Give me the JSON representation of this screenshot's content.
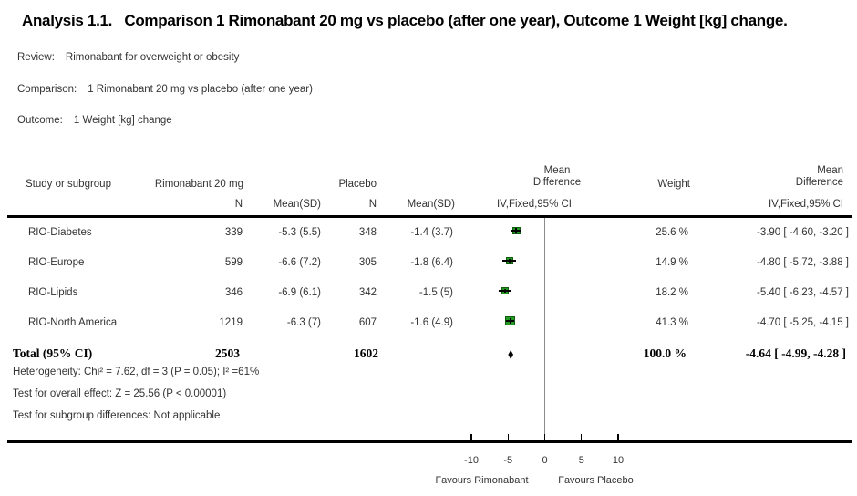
{
  "title": "Analysis 1.1.   Comparison 1 Rimonabant 20 mg vs placebo (after one year), Outcome 1 Weight [kg] change.",
  "meta": {
    "review_label": "Review:",
    "review": "Rimonabant for overweight or obesity",
    "comparison_label": "Comparison:",
    "comparison": "1 Rimonabant 20 mg vs placebo (after one year)",
    "outcome_label": "Outcome:",
    "outcome": "1 Weight [kg] change"
  },
  "table": {
    "headers": {
      "study": "Study or subgroup",
      "group1": "Rimonabant 20 mg",
      "group2": "Placebo",
      "n": "N",
      "mean_sd": "Mean(SD)",
      "md_line1": "Mean",
      "md_line2": "Difference",
      "weight": "Weight",
      "ci_method": "IV,Fixed,95% CI"
    },
    "total": {
      "label": "Total (95% CI)",
      "n1": "2503",
      "n2": "1602",
      "weight": "100.0 %",
      "md_text": "-4.64 [ -4.99, -4.28 ]"
    },
    "footnotes": [
      "Heterogeneity: Chi² = 7.62, df = 3 (P = 0.05); I² =61%",
      "Test for overall effect: Z = 25.56 (P < 0.00001)",
      "Test for subgroup differences: Not applicable"
    ]
  },
  "chart_data": {
    "type": "forest",
    "effect_measure": "Mean Difference, IV Fixed 95% CI",
    "x_axis": {
      "ticks": [
        -10,
        -5,
        0,
        5,
        10
      ],
      "min": -10,
      "max": 10
    },
    "left_label": "Favours Rimonabant",
    "right_label": "Favours Placebo",
    "studies": [
      {
        "study": "RIO-Diabetes",
        "n1": "339",
        "mean_sd1": "-5.3 (5.5)",
        "n2": "348",
        "mean_sd2": "-1.4 (3.7)",
        "weight": "25.6 %",
        "weight_pct": 25.6,
        "md": -3.9,
        "ci_low": -4.6,
        "ci_high": -3.2,
        "md_text": "-3.90 [ -4.60, -3.20 ]"
      },
      {
        "study": "RIO-Europe",
        "n1": "599",
        "mean_sd1": "-6.6 (7.2)",
        "n2": "305",
        "mean_sd2": "-1.8 (6.4)",
        "weight": "14.9 %",
        "weight_pct": 14.9,
        "md": -4.8,
        "ci_low": -5.72,
        "ci_high": -3.88,
        "md_text": "-4.80 [ -5.72, -3.88 ]"
      },
      {
        "study": "RIO-Lipids",
        "n1": "346",
        "mean_sd1": "-6.9 (6.1)",
        "n2": "342",
        "mean_sd2": "-1.5 (5)",
        "weight": "18.2 %",
        "weight_pct": 18.2,
        "md": -5.4,
        "ci_low": -6.23,
        "ci_high": -4.57,
        "md_text": "-5.40 [ -6.23, -4.57 ]"
      },
      {
        "study": "RIO-North America",
        "n1": "1219",
        "mean_sd1": "-6.3 (7)",
        "n2": "607",
        "mean_sd2": "-1.6 (4.9)",
        "weight": "41.3 %",
        "weight_pct": 41.3,
        "md": -4.7,
        "ci_low": -5.25,
        "ci_high": -4.15,
        "md_text": "-4.70 [ -5.25, -4.15 ]"
      }
    ],
    "total": {
      "md": -4.64,
      "ci_low": -4.99,
      "ci_high": -4.28
    },
    "colors": {
      "marker_fill": "#229a22",
      "marker_border": "#115c11",
      "ci_line": "#000000",
      "diamond": "#000000",
      "axis_line": "#000000",
      "zero_line": "#8c8c8c"
    }
  }
}
